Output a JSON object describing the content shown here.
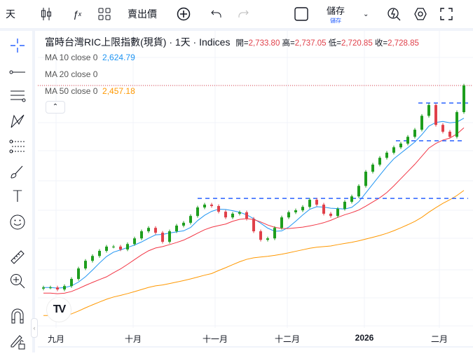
{
  "toolbar": {
    "interval": "天",
    "indicators_icon": "fx-icon",
    "layout_icon": "grid-icon",
    "price_type": "賣出價",
    "save_label": "儲存",
    "save_sub": "儲存"
  },
  "symbol": {
    "title": "富時台灣RIC上限指數(現貨) · 1天 · Indices",
    "open_label": "開=",
    "open": "2,733.80",
    "high_label": "高=",
    "high": "2,737.05",
    "low_label": "低=",
    "low": "2,720.85",
    "close_label": "收=",
    "close": "2,728.85"
  },
  "indicators": [
    {
      "label": "MA 10 close 0",
      "value": "2,624.79",
      "color": "#2196f3"
    },
    {
      "label": "MA 20 close 0",
      "value": "",
      "color": "#f23645"
    },
    {
      "label": "MA 50 close 0",
      "value": "2,457.18",
      "color": "#ff9800"
    }
  ],
  "colors": {
    "up": "#1e9e1e",
    "down": "#e0404a",
    "dash": "#2962ff"
  },
  "time_axis": [
    "九月",
    "十月",
    "十一月",
    "十二月",
    "2026",
    "二月"
  ],
  "chart_data": {
    "type": "candlestick",
    "closes": [
      2017,
      2017,
      2010,
      2022,
      2047,
      2084,
      2111,
      2128,
      2146,
      2161,
      2161,
      2151,
      2170,
      2190,
      2215,
      2227,
      2210,
      2178,
      2215,
      2235,
      2245,
      2269,
      2299,
      2309,
      2304,
      2284,
      2264,
      2277,
      2282,
      2259,
      2215,
      2185,
      2190,
      2227,
      2264,
      2282,
      2289,
      2301,
      2326,
      2309,
      2277,
      2269,
      2294,
      2319,
      2338,
      2375,
      2425,
      2450,
      2474,
      2492,
      2511,
      2524,
      2548,
      2573,
      2622,
      2660,
      2590,
      2566,
      2548,
      2635,
      2728.85
    ],
    "horizontal_lines": [
      2667,
      2534,
      2331
    ],
    "last_price": 2728.85
  }
}
